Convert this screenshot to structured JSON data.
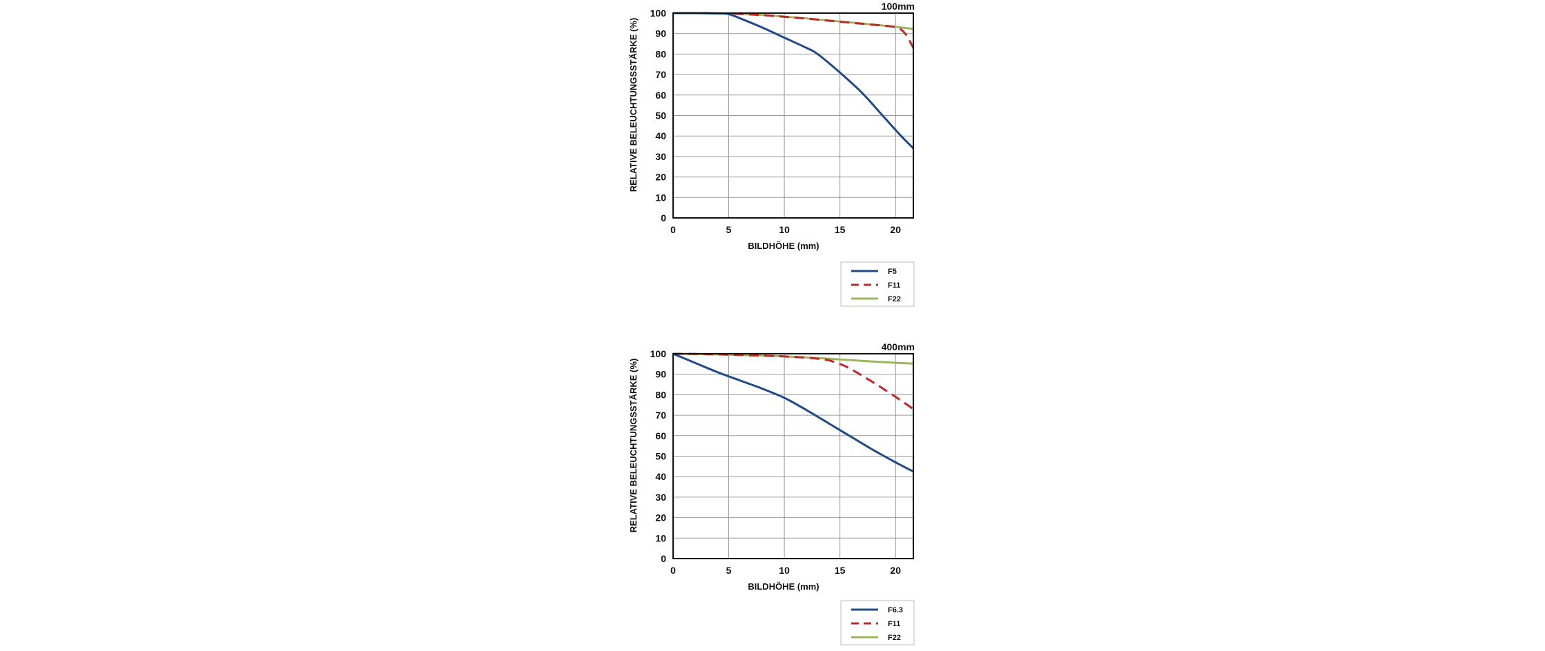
{
  "chart_data": [
    {
      "type": "line",
      "title": "100mm",
      "xlabel": "BILDHÖHE (mm)",
      "ylabel": "RELATIVE BELEUCHTUNGSSTÄRKE (%)",
      "xlim": [
        0,
        21.6
      ],
      "ylim": [
        0,
        100
      ],
      "xticks": [
        0,
        5,
        10,
        15,
        20
      ],
      "yticks": [
        0,
        10,
        20,
        30,
        40,
        50,
        60,
        70,
        80,
        90,
        100
      ],
      "grid": true,
      "legend_position": "bottom-right",
      "series": [
        {
          "name": "F5",
          "color": "#1f4a87",
          "dash": "solid",
          "x": [
            0,
            2,
            4,
            5,
            6,
            8,
            10,
            12,
            13,
            15,
            17,
            19,
            20.5,
            21.6
          ],
          "y": [
            100,
            100,
            99.8,
            99.5,
            97.5,
            93,
            88,
            83,
            80,
            71,
            61,
            49,
            40,
            34
          ]
        },
        {
          "name": "F11",
          "color": "#c0262a",
          "dash": "dashed",
          "x": [
            0,
            2,
            4,
            6,
            8,
            10,
            12,
            14,
            16,
            18,
            20,
            20.5,
            21,
            21.6
          ],
          "y": [
            100,
            100,
            99.9,
            99.6,
            99,
            98.2,
            97.3,
            96.3,
            95.3,
            94.3,
            93.2,
            92,
            89,
            83
          ]
        },
        {
          "name": "F22",
          "color": "#9ab85a",
          "dash": "solid",
          "x": [
            0,
            2,
            4,
            6,
            8,
            10,
            12,
            14,
            16,
            18,
            20,
            21.6
          ],
          "y": [
            100,
            100,
            99.9,
            99.6,
            99.1,
            98.3,
            97.4,
            96.4,
            95.4,
            94.4,
            93.3,
            92.3
          ]
        }
      ]
    },
    {
      "type": "line",
      "title": "400mm",
      "xlabel": "BILDHÖHE (mm)",
      "ylabel": "RELATIVE BELEUCHTUNGSSTÄRKE (%)",
      "xlim": [
        0,
        21.6
      ],
      "ylim": [
        0,
        100
      ],
      "xticks": [
        0,
        5,
        10,
        15,
        20
      ],
      "yticks": [
        0,
        10,
        20,
        30,
        40,
        50,
        60,
        70,
        80,
        90,
        100
      ],
      "grid": true,
      "legend_position": "bottom-right",
      "series": [
        {
          "name": "F6.3",
          "color": "#1f4a87",
          "dash": "solid",
          "x": [
            0,
            2,
            4,
            6,
            8,
            10,
            12,
            14,
            16,
            18,
            20,
            21.6
          ],
          "y": [
            100,
            95.5,
            91,
            87,
            83,
            78.5,
            72.5,
            66,
            59.5,
            53,
            47,
            42.5
          ]
        },
        {
          "name": "F11",
          "color": "#c0262a",
          "dash": "dashed",
          "x": [
            0,
            2,
            4,
            6,
            8,
            10,
            12,
            13,
            14,
            15,
            16,
            18,
            20,
            21.6
          ],
          "y": [
            100,
            99.9,
            99.7,
            99.4,
            99.1,
            98.7,
            98.1,
            97.6,
            96.8,
            95,
            92.5,
            86,
            79,
            73
          ]
        },
        {
          "name": "F22",
          "color": "#9ab85a",
          "dash": "solid",
          "x": [
            0,
            2,
            4,
            6,
            8,
            10,
            12,
            14,
            16,
            18,
            20,
            21.6
          ],
          "y": [
            100,
            99.9,
            99.7,
            99.4,
            99.1,
            98.7,
            98.2,
            97.6,
            96.9,
            96.2,
            95.6,
            95.2
          ]
        }
      ]
    }
  ]
}
